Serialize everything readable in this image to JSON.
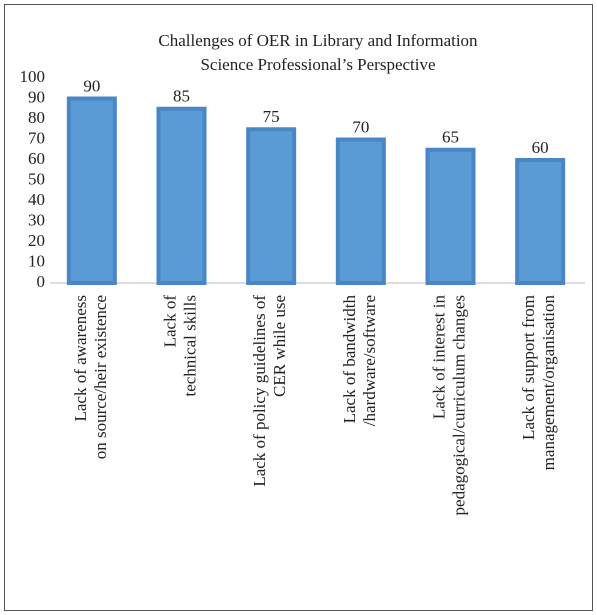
{
  "chart_data": {
    "type": "bar",
    "title": [
      "Challenges of OER in Library and Information",
      "Science Professional’s Perspective"
    ],
    "categories": [
      [
        "Lack of awareness",
        "on source/heir existence"
      ],
      [
        "Lack of",
        "technical skills"
      ],
      [
        "Lack of policy guidelines of",
        "CER while use"
      ],
      [
        "Lack of bandwidth",
        "/hardware/software"
      ],
      [
        "Lack of interest in",
        "pedagogical/curriculum changes"
      ],
      [
        "Lack of support from",
        "management/organisation"
      ]
    ],
    "values": [
      90,
      85,
      75,
      70,
      65,
      60
    ],
    "color": "#5b9bd5",
    "ylim": [
      0,
      100
    ],
    "yticks": [
      0,
      10,
      20,
      30,
      40,
      50,
      60,
      70,
      80,
      90,
      100
    ],
    "grid": false
  }
}
